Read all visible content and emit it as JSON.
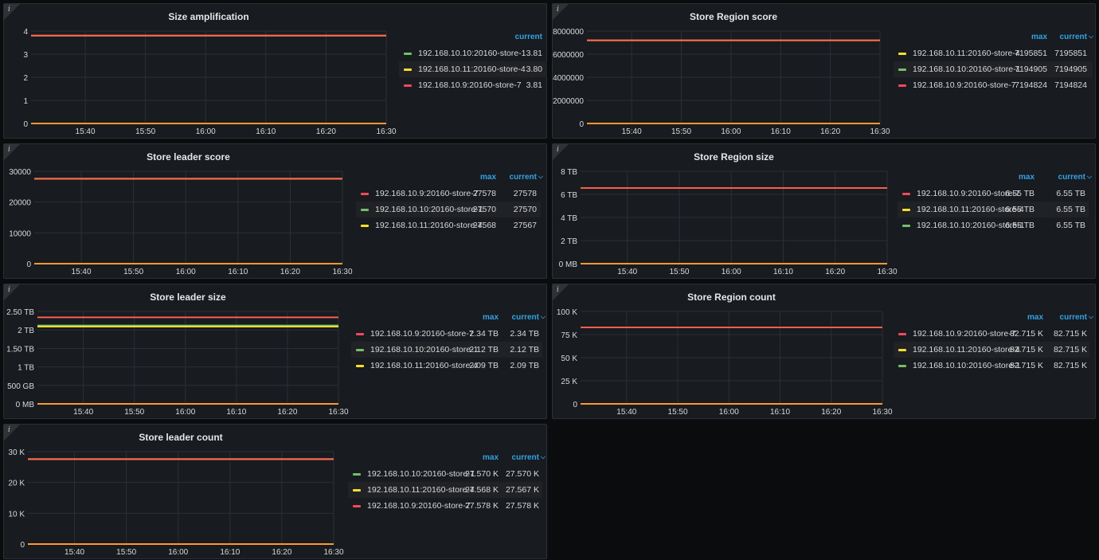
{
  "colors": {
    "green": "#73bf69",
    "yellow": "#fade2a",
    "red": "#f2495c",
    "orange": "#ff9830",
    "grid": "#2c2f35",
    "axis": "#d8d9da",
    "accent": "#33a2e5"
  },
  "info_icon": "i",
  "panels": [
    {
      "id": "size-amplification",
      "title": "Size amplification",
      "legend_columns": [
        "current"
      ],
      "legend": [
        {
          "name": "192.168.10.10:20160-store-1",
          "color": "green",
          "current": "3.81"
        },
        {
          "name": "192.168.10.11:20160-store-4",
          "color": "yellow",
          "current": "3.80"
        },
        {
          "name": "192.168.10.9:20160-store-7",
          "color": "red",
          "current": "3.81"
        }
      ],
      "chart_data": {
        "type": "line",
        "yticks": [
          "0",
          "1",
          "2",
          "3",
          "4"
        ],
        "ylim": [
          0,
          4
        ],
        "xticks": [
          "15:40",
          "15:50",
          "16:00",
          "16:10",
          "16:20",
          "16:30"
        ],
        "series": [
          {
            "name": "192.168.10.10:20160-store-1",
            "color": "green",
            "values": [
              3.81,
              3.81
            ]
          },
          {
            "name": "192.168.10.11:20160-store-4",
            "color": "yellow",
            "values": [
              3.8,
              3.8
            ]
          },
          {
            "name": "192.168.10.9:20160-store-7",
            "color": "red",
            "values": [
              3.81,
              3.81
            ]
          }
        ],
        "baseline_values": [
          0,
          0
        ]
      }
    },
    {
      "id": "store-region-score",
      "title": "Store Region score",
      "legend_columns": [
        "max",
        "current"
      ],
      "legend": [
        {
          "name": "192.168.10.11:20160-store-4",
          "color": "yellow",
          "max": "7195851",
          "current": "7195851"
        },
        {
          "name": "192.168.10.10:20160-store-1",
          "color": "green",
          "max": "7194905",
          "current": "7194905"
        },
        {
          "name": "192.168.10.9:20160-store-7",
          "color": "red",
          "max": "7194824",
          "current": "7194824"
        }
      ],
      "chart_data": {
        "type": "line",
        "yticks": [
          "0",
          "2000000",
          "4000000",
          "6000000",
          "8000000"
        ],
        "ylim": [
          0,
          8000000
        ],
        "xticks": [
          "15:40",
          "15:50",
          "16:00",
          "16:10",
          "16:20",
          "16:30"
        ],
        "series": [
          {
            "name": "192.168.10.11:20160-store-4",
            "color": "yellow",
            "values": [
              7195851,
              7195851
            ]
          },
          {
            "name": "192.168.10.10:20160-store-1",
            "color": "green",
            "values": [
              7194905,
              7194905
            ]
          },
          {
            "name": "192.168.10.9:20160-store-7",
            "color": "red",
            "values": [
              7194824,
              7194824
            ]
          }
        ],
        "baseline_values": [
          0,
          0
        ]
      }
    },
    {
      "id": "store-leader-score",
      "title": "Store leader score",
      "legend_columns": [
        "max",
        "current"
      ],
      "legend": [
        {
          "name": "192.168.10.9:20160-store-7",
          "color": "red",
          "max": "27578",
          "current": "27578"
        },
        {
          "name": "192.168.10.10:20160-store-1",
          "color": "green",
          "max": "27570",
          "current": "27570"
        },
        {
          "name": "192.168.10.11:20160-store-4",
          "color": "yellow",
          "max": "27568",
          "current": "27567"
        }
      ],
      "chart_data": {
        "type": "line",
        "yticks": [
          "0",
          "10000",
          "20000",
          "30000"
        ],
        "ylim": [
          0,
          30000
        ],
        "xticks": [
          "15:40",
          "15:50",
          "16:00",
          "16:10",
          "16:20",
          "16:30"
        ],
        "series": [
          {
            "name": "192.168.10.10:20160-store-1",
            "color": "green",
            "values": [
              27570,
              27570
            ]
          },
          {
            "name": "192.168.10.11:20160-store-4",
            "color": "yellow",
            "values": [
              27567,
              27567
            ]
          },
          {
            "name": "192.168.10.9:20160-store-7",
            "color": "red",
            "values": [
              27578,
              27578
            ]
          }
        ],
        "baseline_values": [
          0,
          0
        ]
      }
    },
    {
      "id": "store-region-size",
      "title": "Store Region size",
      "legend_columns": [
        "max",
        "current"
      ],
      "legend": [
        {
          "name": "192.168.10.9:20160-store-7",
          "color": "red",
          "max": "6.55 TB",
          "current": "6.55 TB"
        },
        {
          "name": "192.168.10.11:20160-store-4",
          "color": "yellow",
          "max": "6.55 TB",
          "current": "6.55 TB"
        },
        {
          "name": "192.168.10.10:20160-store-1",
          "color": "green",
          "max": "6.55 TB",
          "current": "6.55 TB"
        }
      ],
      "chart_data": {
        "type": "line",
        "yticks": [
          "0 MB",
          "2 TB",
          "4 TB",
          "6 TB",
          "8 TB"
        ],
        "ylim": [
          0,
          8
        ],
        "xticks": [
          "15:40",
          "15:50",
          "16:00",
          "16:10",
          "16:20",
          "16:30"
        ],
        "series": [
          {
            "name": "192.168.10.10:20160-store-1",
            "color": "green",
            "values": [
              6.55,
              6.55
            ]
          },
          {
            "name": "192.168.10.11:20160-store-4",
            "color": "yellow",
            "values": [
              6.55,
              6.55
            ]
          },
          {
            "name": "192.168.10.9:20160-store-7",
            "color": "red",
            "values": [
              6.55,
              6.55
            ]
          }
        ],
        "baseline_values": [
          0,
          0
        ]
      }
    },
    {
      "id": "store-leader-size",
      "title": "Store leader size",
      "legend_columns": [
        "max",
        "current"
      ],
      "legend": [
        {
          "name": "192.168.10.9:20160-store-7",
          "color": "red",
          "max": "2.34 TB",
          "current": "2.34 TB"
        },
        {
          "name": "192.168.10.10:20160-store-1",
          "color": "green",
          "max": "2.12 TB",
          "current": "2.12 TB"
        },
        {
          "name": "192.168.10.11:20160-store-4",
          "color": "yellow",
          "max": "2.09 TB",
          "current": "2.09 TB"
        }
      ],
      "chart_data": {
        "type": "line",
        "yticks": [
          "0 MB",
          "500 GB",
          "1 TB",
          "1.50 TB",
          "2 TB",
          "2.50 TB"
        ],
        "ylim": [
          0,
          2.5
        ],
        "xticks": [
          "15:40",
          "15:50",
          "16:00",
          "16:10",
          "16:20",
          "16:30"
        ],
        "series": [
          {
            "name": "192.168.10.10:20160-store-1",
            "color": "green",
            "values": [
              2.12,
              2.12
            ]
          },
          {
            "name": "192.168.10.11:20160-store-4",
            "color": "yellow",
            "values": [
              2.09,
              2.09
            ]
          },
          {
            "name": "192.168.10.9:20160-store-7",
            "color": "red",
            "values": [
              2.34,
              2.34
            ]
          }
        ],
        "baseline_values": [
          0,
          0
        ]
      }
    },
    {
      "id": "store-region-count",
      "title": "Store Region count",
      "legend_columns": [
        "max",
        "current"
      ],
      "legend": [
        {
          "name": "192.168.10.9:20160-store-7",
          "color": "red",
          "max": "82.715 K",
          "current": "82.715 K"
        },
        {
          "name": "192.168.10.11:20160-store-4",
          "color": "yellow",
          "max": "82.715 K",
          "current": "82.715 K"
        },
        {
          "name": "192.168.10.10:20160-store-1",
          "color": "green",
          "max": "82.715 K",
          "current": "82.715 K"
        }
      ],
      "chart_data": {
        "type": "line",
        "yticks": [
          "0",
          "25 K",
          "50 K",
          "75 K",
          "100 K"
        ],
        "ylim": [
          0,
          100
        ],
        "xticks": [
          "15:40",
          "15:50",
          "16:00",
          "16:10",
          "16:20",
          "16:30"
        ],
        "series": [
          {
            "name": "192.168.10.10:20160-store-1",
            "color": "green",
            "values": [
              82.715,
              82.715
            ]
          },
          {
            "name": "192.168.10.11:20160-store-4",
            "color": "yellow",
            "values": [
              82.715,
              82.715
            ]
          },
          {
            "name": "192.168.10.9:20160-store-7",
            "color": "red",
            "values": [
              82.715,
              82.715
            ]
          }
        ],
        "baseline_values": [
          0,
          0
        ]
      }
    },
    {
      "id": "store-leader-count",
      "title": "Store leader count",
      "legend_columns": [
        "max",
        "current"
      ],
      "legend": [
        {
          "name": "192.168.10.10:20160-store-1",
          "color": "green",
          "max": "27.570 K",
          "current": "27.570 K"
        },
        {
          "name": "192.168.10.11:20160-store-4",
          "color": "yellow",
          "max": "27.568 K",
          "current": "27.567 K"
        },
        {
          "name": "192.168.10.9:20160-store-7",
          "color": "red",
          "max": "27.578 K",
          "current": "27.578 K"
        }
      ],
      "chart_data": {
        "type": "line",
        "yticks": [
          "0",
          "10 K",
          "20 K",
          "30 K"
        ],
        "ylim": [
          0,
          30
        ],
        "xticks": [
          "15:40",
          "15:50",
          "16:00",
          "16:10",
          "16:20",
          "16:30"
        ],
        "series": [
          {
            "name": "192.168.10.10:20160-store-1",
            "color": "green",
            "values": [
              27.57,
              27.57
            ]
          },
          {
            "name": "192.168.10.11:20160-store-4",
            "color": "yellow",
            "values": [
              27.567,
              27.567
            ]
          },
          {
            "name": "192.168.10.9:20160-store-7",
            "color": "red",
            "values": [
              27.578,
              27.578
            ]
          }
        ],
        "baseline_values": [
          0,
          0
        ]
      }
    }
  ]
}
